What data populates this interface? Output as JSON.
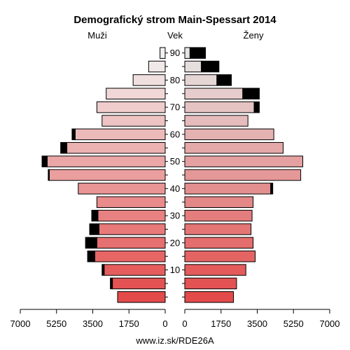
{
  "chart_data": {
    "type": "bar",
    "title": "Demografický strom Main-Spessart 2014",
    "left_label": "Muži",
    "center_label": "Vek",
    "right_label": "Ženy",
    "source": "www.iz.sk/RDE26A",
    "age_ticks": [
      "10",
      "20",
      "30",
      "40",
      "50",
      "60",
      "70",
      "80",
      "90"
    ],
    "x_ticks_left": [
      "7000",
      "5250",
      "3500",
      "1750",
      "0"
    ],
    "x_ticks_right": [
      "0",
      "1750",
      "3500",
      "5250",
      "7000"
    ],
    "xlim": [
      0,
      7000
    ],
    "age_groups": [
      "0-4",
      "5-9",
      "10-14",
      "15-19",
      "20-24",
      "25-29",
      "30-34",
      "35-39",
      "40-44",
      "45-49",
      "50-54",
      "55-59",
      "60-64",
      "65-69",
      "70-74",
      "75-79",
      "80-84",
      "85-89",
      "90+"
    ],
    "men": [
      2300,
      2550,
      2950,
      3400,
      3300,
      3200,
      3250,
      3300,
      4200,
      5600,
      5700,
      4750,
      4350,
      3050,
      3300,
      2850,
      1550,
      800,
      250
    ],
    "women": [
      2350,
      2500,
      2950,
      3400,
      3300,
      3200,
      3250,
      3300,
      4150,
      5600,
      5700,
      4750,
      4300,
      3050,
      3350,
      2800,
      1550,
      800,
      250
    ],
    "men_surplus": [
      0,
      100,
      100,
      350,
      550,
      450,
      300,
      0,
      0,
      50,
      250,
      300,
      150,
      0,
      0,
      0,
      0,
      0,
      0
    ],
    "women_surplus": [
      0,
      0,
      0,
      0,
      0,
      0,
      0,
      0,
      100,
      0,
      0,
      0,
      0,
      0,
      250,
      800,
      700,
      850,
      750
    ],
    "colors": {
      "bar_stroke": "#000000",
      "surplus": "#000000",
      "men_young": "#e34a4a",
      "men_old": "#f2f2f2",
      "women_young": "#e34a4a",
      "women_old": "#e6e6e6"
    }
  }
}
